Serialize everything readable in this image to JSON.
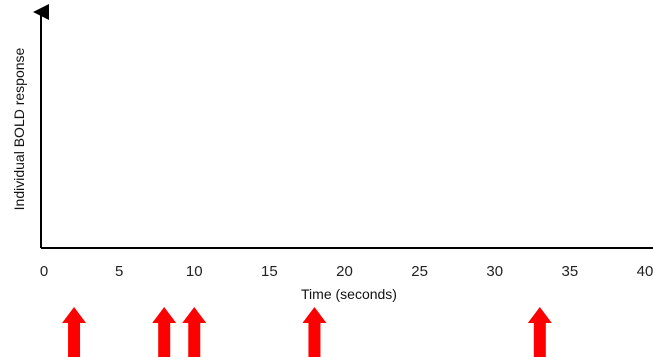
{
  "chart_data": {
    "type": "line",
    "title": "",
    "xlabel": "Time (seconds)",
    "ylabel": "Individual BOLD response",
    "xlim": [
      0,
      40
    ],
    "x_ticks": [
      0,
      5,
      10,
      15,
      20,
      25,
      30,
      35,
      40
    ],
    "x_tick_labels": [
      "0",
      "5",
      "10",
      "15",
      "20",
      "25",
      "30",
      "35",
      "40"
    ],
    "grid": false,
    "series": [],
    "event_markers": {
      "description": "stimulus onset arrows below the time axis",
      "times": [
        2,
        8,
        10,
        18,
        33
      ],
      "color": "#ff0000"
    }
  }
}
